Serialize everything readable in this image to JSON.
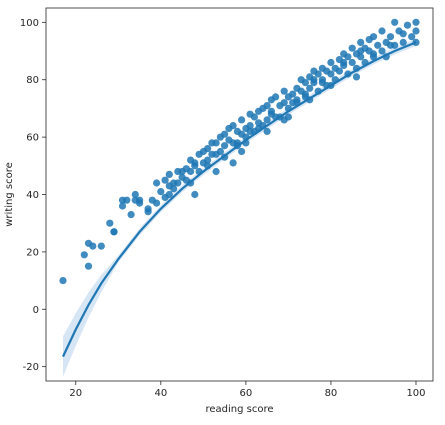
{
  "chart_data": {
    "type": "scatter",
    "title": "",
    "xlabel": "reading score",
    "ylabel": "writing score",
    "xlim": [
      13,
      104
    ],
    "ylim": [
      -25,
      105
    ],
    "xticks": [
      20,
      40,
      60,
      80,
      100
    ],
    "yticks": [
      -20,
      0,
      20,
      40,
      60,
      80,
      100
    ],
    "grid": false,
    "colors": {
      "points": "#1f77b4",
      "line": "#1f77b4",
      "band": "#a6c8e6",
      "axes": "#262626"
    },
    "series": [
      {
        "kind": "points",
        "x": [
          17,
          22,
          23,
          23,
          24,
          26,
          28,
          29,
          29,
          31,
          31,
          32,
          33,
          34,
          34,
          35,
          35,
          37,
          37,
          38,
          39,
          39,
          40,
          41,
          41,
          42,
          42,
          42,
          43,
          43,
          44,
          44,
          45,
          45,
          46,
          46,
          47,
          47,
          47,
          48,
          48,
          49,
          49,
          50,
          50,
          51,
          51,
          51,
          52,
          52,
          53,
          53,
          54,
          54,
          55,
          55,
          55,
          56,
          56,
          57,
          57,
          58,
          58,
          59,
          59,
          60,
          60,
          60,
          61,
          61,
          62,
          62,
          63,
          63,
          64,
          64,
          65,
          65,
          65,
          66,
          66,
          67,
          67,
          68,
          68,
          69,
          69,
          70,
          70,
          70,
          71,
          71,
          72,
          72,
          73,
          73,
          74,
          74,
          75,
          75,
          75,
          76,
          76,
          77,
          77,
          78,
          78,
          79,
          79,
          80,
          80,
          80,
          81,
          81,
          82,
          82,
          83,
          83,
          84,
          84,
          85,
          85,
          86,
          86,
          87,
          87,
          88,
          88,
          89,
          89,
          90,
          90,
          91,
          92,
          92,
          93,
          93,
          94,
          95,
          95,
          96,
          97,
          97,
          98,
          99,
          100,
          100,
          100,
          57,
          63,
          66,
          72,
          76,
          78,
          83,
          87,
          90,
          53,
          59,
          61,
          69,
          74,
          86,
          94,
          48,
          58
        ],
        "y": [
          10,
          19,
          23,
          15,
          22,
          22,
          30,
          27,
          27,
          38,
          36,
          38,
          33,
          38,
          40,
          37,
          38,
          35,
          34,
          38,
          44,
          37,
          41,
          45,
          39,
          43,
          47,
          40,
          44,
          42,
          48,
          44,
          46,
          48,
          49,
          45,
          48,
          52,
          44,
          51,
          50,
          54,
          48,
          51,
          55,
          50,
          56,
          52,
          54,
          58,
          54,
          58,
          55,
          60,
          57,
          61,
          53,
          59,
          63,
          58,
          64,
          62,
          57,
          61,
          66,
          60,
          63,
          58,
          64,
          68,
          62,
          67,
          65,
          69,
          64,
          70,
          66,
          71,
          62,
          68,
          73,
          67,
          74,
          71,
          67,
          72,
          76,
          70,
          74,
          67,
          75,
          72,
          77,
          73,
          76,
          80,
          74,
          79,
          77,
          81,
          73,
          79,
          83,
          76,
          82,
          80,
          84,
          78,
          83,
          82,
          86,
          78,
          84,
          80,
          87,
          83,
          85,
          89,
          82,
          88,
          86,
          91,
          84,
          89,
          88,
          93,
          86,
          91,
          90,
          94,
          88,
          95,
          92,
          90,
          97,
          93,
          88,
          95,
          100,
          92,
          97,
          96,
          93,
          99,
          95,
          100,
          97,
          93,
          51,
          63,
          69,
          72,
          80,
          79,
          86,
          90,
          89,
          48,
          55,
          62,
          66,
          75,
          81,
          92,
          40,
          58
        ]
      },
      {
        "kind": "fit",
        "x": [
          17,
          20,
          23,
          26,
          30,
          35,
          40,
          45,
          50,
          55,
          60,
          65,
          70,
          75,
          80,
          85,
          90,
          95,
          100
        ],
        "y": [
          -16.5,
          -7,
          1.5,
          9,
          17.5,
          27,
          35,
          42,
          48,
          53.5,
          59,
          64,
          69,
          73.5,
          78,
          82.5,
          86.5,
          90,
          93
        ]
      }
    ]
  }
}
